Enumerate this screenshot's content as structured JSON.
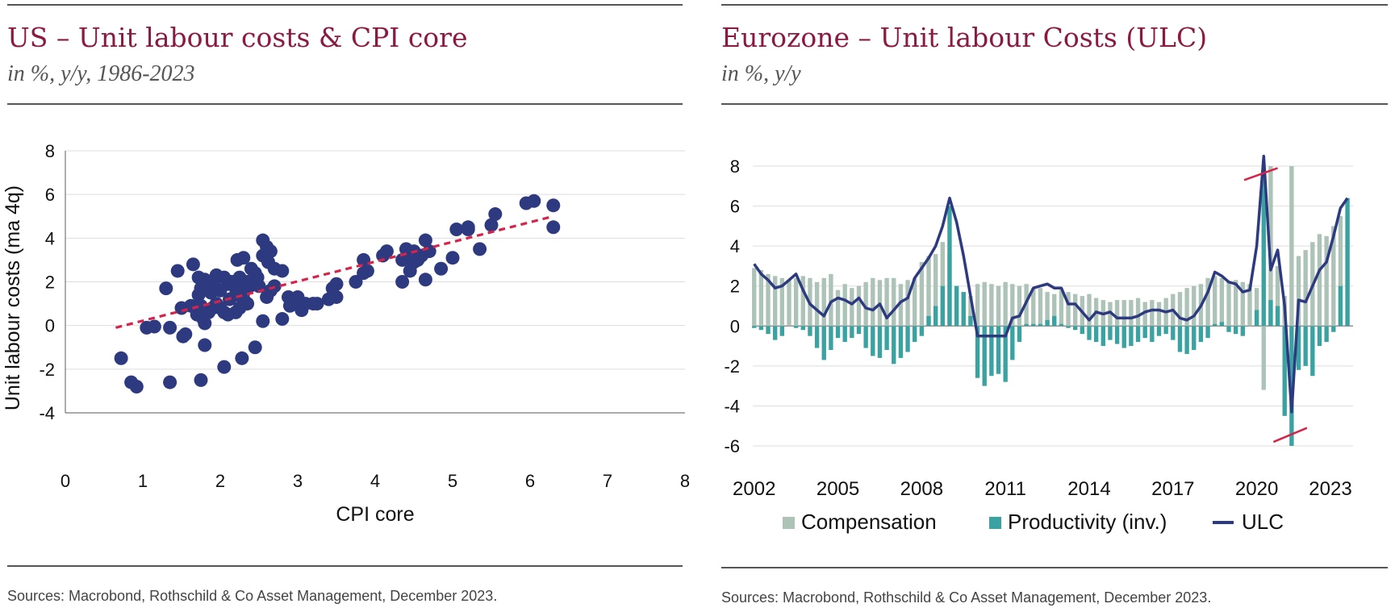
{
  "left": {
    "title": "US – Unit labour costs & CPI core",
    "subtitle": "in %, y/y, 1986-2023",
    "source": "Sources: Macrobond, Rothschild & Co Asset Management, December 2023."
  },
  "right": {
    "title": "Eurozone – Unit labour Costs (ULC)",
    "subtitle": "in %, y/y",
    "source": "Sources: Macrobond, Rothschild & Co Asset Management, December 2023."
  },
  "colors": {
    "scatter": "#2e3a80",
    "trend": "#d6234a",
    "compensation": "#adc3b7",
    "productivity": "#3aa3a2",
    "ulc": "#2e3a80",
    "grid": "#dddddd"
  },
  "chart_data": [
    {
      "type": "scatter",
      "xlabel": "CPI core",
      "ylabel": "Unit labour costs  (ma 4q)",
      "xlim": [
        0,
        8
      ],
      "ylim": [
        -4,
        8
      ],
      "xticks": [
        "0",
        "1",
        "2",
        "3",
        "4",
        "5",
        "6",
        "7",
        "8"
      ],
      "yticks": [
        "-4",
        "-2",
        "0",
        "2",
        "4",
        "6",
        "8"
      ],
      "points": [
        [
          0.72,
          -1.5
        ],
        [
          0.85,
          -2.6
        ],
        [
          0.92,
          -2.8
        ],
        [
          1.35,
          -2.6
        ],
        [
          1.75,
          -2.5
        ],
        [
          2.05,
          -1.9
        ],
        [
          2.28,
          -1.5
        ],
        [
          2.45,
          -1.0
        ],
        [
          1.8,
          -0.9
        ],
        [
          1.05,
          -0.1
        ],
        [
          1.15,
          -0.05
        ],
        [
          1.35,
          -0.1
        ],
        [
          1.52,
          -0.5
        ],
        [
          1.55,
          -0.4
        ],
        [
          1.3,
          1.7
        ],
        [
          1.45,
          2.5
        ],
        [
          1.65,
          2.8
        ],
        [
          1.5,
          0.8
        ],
        [
          1.62,
          0.9
        ],
        [
          1.7,
          0.5
        ],
        [
          1.75,
          0.9
        ],
        [
          1.78,
          0.3
        ],
        [
          1.8,
          0.1
        ],
        [
          1.85,
          0.6
        ],
        [
          1.9,
          0.8
        ],
        [
          1.95,
          1.0
        ],
        [
          1.72,
          1.4
        ],
        [
          1.75,
          1.7
        ],
        [
          1.78,
          1.9
        ],
        [
          1.8,
          2.1
        ],
        [
          1.72,
          2.2
        ],
        [
          1.85,
          1.8
        ],
        [
          1.88,
          1.5
        ],
        [
          1.92,
          2.0
        ],
        [
          1.95,
          2.3
        ],
        [
          2.0,
          1.6
        ],
        [
          2.05,
          2.2
        ],
        [
          2.1,
          1.9
        ],
        [
          2.12,
          1.2
        ],
        [
          2.15,
          2.0
        ],
        [
          2.2,
          1.7
        ],
        [
          2.22,
          3.0
        ],
        [
          2.25,
          2.2
        ],
        [
          2.3,
          3.1
        ],
        [
          2.3,
          1.5
        ],
        [
          2.35,
          2.0
        ],
        [
          2.38,
          1.8
        ],
        [
          2.4,
          2.6
        ],
        [
          2.42,
          1.9
        ],
        [
          2.45,
          2.4
        ],
        [
          2.48,
          2.2
        ],
        [
          2.5,
          1.8
        ],
        [
          2.2,
          1.4
        ],
        [
          2.0,
          0.8
        ],
        [
          2.05,
          0.6
        ],
        [
          2.2,
          0.6
        ],
        [
          2.25,
          0.8
        ],
        [
          2.3,
          1.2
        ],
        [
          2.35,
          1.0
        ],
        [
          2.1,
          0.5
        ],
        [
          2.55,
          3.9
        ],
        [
          2.6,
          3.6
        ],
        [
          2.55,
          3.2
        ],
        [
          2.65,
          3.4
        ],
        [
          2.62,
          2.9
        ],
        [
          2.7,
          2.6
        ],
        [
          2.6,
          1.3
        ],
        [
          2.65,
          1.6
        ],
        [
          2.7,
          1.8
        ],
        [
          2.55,
          0.2
        ],
        [
          2.8,
          0.3
        ],
        [
          2.8,
          2.5
        ],
        [
          2.9,
          0.9
        ],
        [
          2.95,
          1.0
        ],
        [
          2.88,
          1.3
        ],
        [
          3.0,
          1.3
        ],
        [
          3.05,
          0.7
        ],
        [
          3.1,
          1.0
        ],
        [
          3.2,
          1.0
        ],
        [
          3.25,
          1.0
        ],
        [
          3.4,
          1.2
        ],
        [
          3.45,
          1.7
        ],
        [
          3.5,
          1.3
        ],
        [
          3.5,
          1.9
        ],
        [
          3.75,
          2.0
        ],
        [
          3.85,
          2.4
        ],
        [
          3.85,
          3.0
        ],
        [
          3.9,
          2.5
        ],
        [
          4.1,
          3.2
        ],
        [
          4.15,
          3.4
        ],
        [
          4.35,
          2.0
        ],
        [
          4.35,
          3.0
        ],
        [
          4.4,
          3.5
        ],
        [
          4.45,
          2.5
        ],
        [
          4.45,
          3.2
        ],
        [
          4.5,
          2.9
        ],
        [
          4.5,
          3.4
        ],
        [
          4.55,
          3.0
        ],
        [
          4.6,
          3.2
        ],
        [
          4.65,
          3.9
        ],
        [
          4.7,
          3.4
        ],
        [
          4.65,
          2.1
        ],
        [
          4.85,
          2.6
        ],
        [
          5.0,
          3.1
        ],
        [
          5.05,
          4.4
        ],
        [
          5.2,
          4.4
        ],
        [
          5.2,
          4.5
        ],
        [
          5.35,
          3.5
        ],
        [
          5.5,
          4.6
        ],
        [
          5.55,
          5.1
        ],
        [
          5.95,
          5.6
        ],
        [
          6.05,
          5.7
        ],
        [
          6.3,
          5.5
        ],
        [
          6.3,
          4.5
        ]
      ],
      "trendline": {
        "x": [
          0.65,
          6.3
        ],
        "y": [
          -0.1,
          5.0
        ]
      }
    },
    {
      "type": "bar+line",
      "ylim": [
        -6,
        8
      ],
      "yticks": [
        "8",
        "6",
        "4",
        "2",
        "0",
        "-2",
        "-4",
        "-6"
      ],
      "xtick_labels": [
        "2002",
        "2005",
        "2008",
        "2011",
        "2014",
        "2017",
        "2020",
        "2023"
      ],
      "series": [
        {
          "name": "Compensation",
          "kind": "bar"
        },
        {
          "name": "Productivity (inv.)",
          "kind": "bar"
        },
        {
          "name": "ULC",
          "kind": "line"
        }
      ],
      "x": [
        2002.0,
        2002.25,
        2002.5,
        2002.75,
        2003.0,
        2003.25,
        2003.5,
        2003.75,
        2004.0,
        2004.25,
        2004.5,
        2004.75,
        2005.0,
        2005.25,
        2005.5,
        2005.75,
        2006.0,
        2006.25,
        2006.5,
        2006.75,
        2007.0,
        2007.25,
        2007.5,
        2007.75,
        2008.0,
        2008.25,
        2008.5,
        2008.75,
        2009.0,
        2009.25,
        2009.5,
        2009.75,
        2010.0,
        2010.25,
        2010.5,
        2010.75,
        2011.0,
        2011.25,
        2011.5,
        2011.75,
        2012.0,
        2012.25,
        2012.5,
        2012.75,
        2013.0,
        2013.25,
        2013.5,
        2013.75,
        2014.0,
        2014.25,
        2014.5,
        2014.75,
        2015.0,
        2015.25,
        2015.5,
        2015.75,
        2016.0,
        2016.25,
        2016.5,
        2016.75,
        2017.0,
        2017.25,
        2017.5,
        2017.75,
        2018.0,
        2018.25,
        2018.5,
        2018.75,
        2019.0,
        2019.25,
        2019.5,
        2019.75,
        2020.0,
        2020.25,
        2020.5,
        2020.75,
        2021.0,
        2021.25,
        2021.5,
        2021.75,
        2022.0,
        2022.25,
        2022.5,
        2022.75,
        2023.0,
        2023.25
      ],
      "compensation": [
        2.9,
        2.8,
        2.6,
        2.5,
        2.4,
        2.3,
        2.4,
        2.5,
        2.4,
        2.2,
        2.4,
        2.6,
        1.8,
        2.1,
        1.9,
        2.0,
        2.2,
        2.4,
        2.3,
        2.4,
        2.4,
        2.1,
        2.3,
        2.4,
        3.2,
        3.5,
        3.6,
        4.2,
        3.6,
        2.0,
        1.7,
        1.5,
        2.1,
        2.2,
        2.1,
        2.0,
        2.2,
        2.1,
        2.0,
        2.1,
        1.9,
        1.9,
        1.7,
        1.6,
        1.8,
        1.7,
        1.6,
        1.5,
        1.6,
        1.4,
        1.3,
        1.2,
        1.3,
        1.3,
        1.3,
        1.4,
        1.2,
        1.3,
        1.2,
        1.4,
        1.6,
        1.7,
        1.9,
        2.0,
        2.1,
        2.4,
        2.5,
        2.4,
        2.2,
        2.3,
        2.2,
        2.1,
        1.9,
        -3.2,
        8.0,
        3.0,
        1.5,
        8.0,
        3.5,
        3.8,
        4.2,
        4.6,
        4.5,
        5.0,
        5.5,
        5.7
      ],
      "productivity": [
        -0.1,
        -0.2,
        -0.4,
        -0.7,
        -0.5,
        0.0,
        -0.1,
        -0.2,
        -0.5,
        -1.1,
        -1.7,
        -1.2,
        -0.6,
        -0.8,
        -0.6,
        -0.4,
        -1.1,
        -1.5,
        -1.6,
        -1.2,
        -1.9,
        -1.6,
        -1.3,
        -0.8,
        -0.5,
        0.5,
        1.0,
        2.0,
        6.0,
        2.0,
        1.7,
        0.5,
        -2.6,
        -3.0,
        -2.5,
        -2.4,
        -2.8,
        -1.7,
        -0.8,
        0.1,
        0.1,
        0.1,
        0.3,
        0.5,
        0.1,
        -0.1,
        -0.2,
        -0.4,
        -0.7,
        -0.8,
        -1.0,
        -0.7,
        -0.9,
        -1.1,
        -1.0,
        -0.8,
        -0.6,
        -0.8,
        -0.5,
        -0.4,
        -0.7,
        -1.3,
        -1.4,
        -1.2,
        -0.8,
        -0.6,
        0.1,
        0.2,
        -0.3,
        -0.4,
        -0.5,
        0.0,
        0.8,
        7.5,
        1.3,
        1.0,
        -4.5,
        -6.0,
        -2.2,
        -2.0,
        -2.5,
        -1.0,
        -0.8,
        -0.3,
        2.0,
        6.4
      ],
      "ulc": [
        3.1,
        2.6,
        2.3,
        1.9,
        2.0,
        2.3,
        2.6,
        1.8,
        1.1,
        0.8,
        0.5,
        1.2,
        1.4,
        1.3,
        1.1,
        1.4,
        0.9,
        0.8,
        1.1,
        0.4,
        0.8,
        1.2,
        1.4,
        2.4,
        2.9,
        3.4,
        4.0,
        5.0,
        6.4,
        5.2,
        3.5,
        1.5,
        -0.5,
        -0.5,
        -0.5,
        -0.5,
        -0.5,
        0.4,
        0.5,
        1.2,
        1.9,
        2.0,
        2.1,
        1.9,
        1.9,
        1.1,
        1.1,
        0.7,
        0.3,
        0.7,
        0.6,
        0.7,
        0.4,
        0.4,
        0.4,
        0.5,
        0.7,
        0.8,
        0.8,
        0.7,
        0.8,
        0.4,
        0.3,
        0.5,
        1.0,
        1.7,
        2.7,
        2.5,
        2.2,
        2.1,
        1.7,
        1.8,
        4.0,
        8.5,
        2.8,
        3.8,
        1.0,
        -4.3,
        1.3,
        1.2,
        2.0,
        2.8,
        3.2,
        4.5,
        5.9,
        6.4
      ]
    }
  ]
}
